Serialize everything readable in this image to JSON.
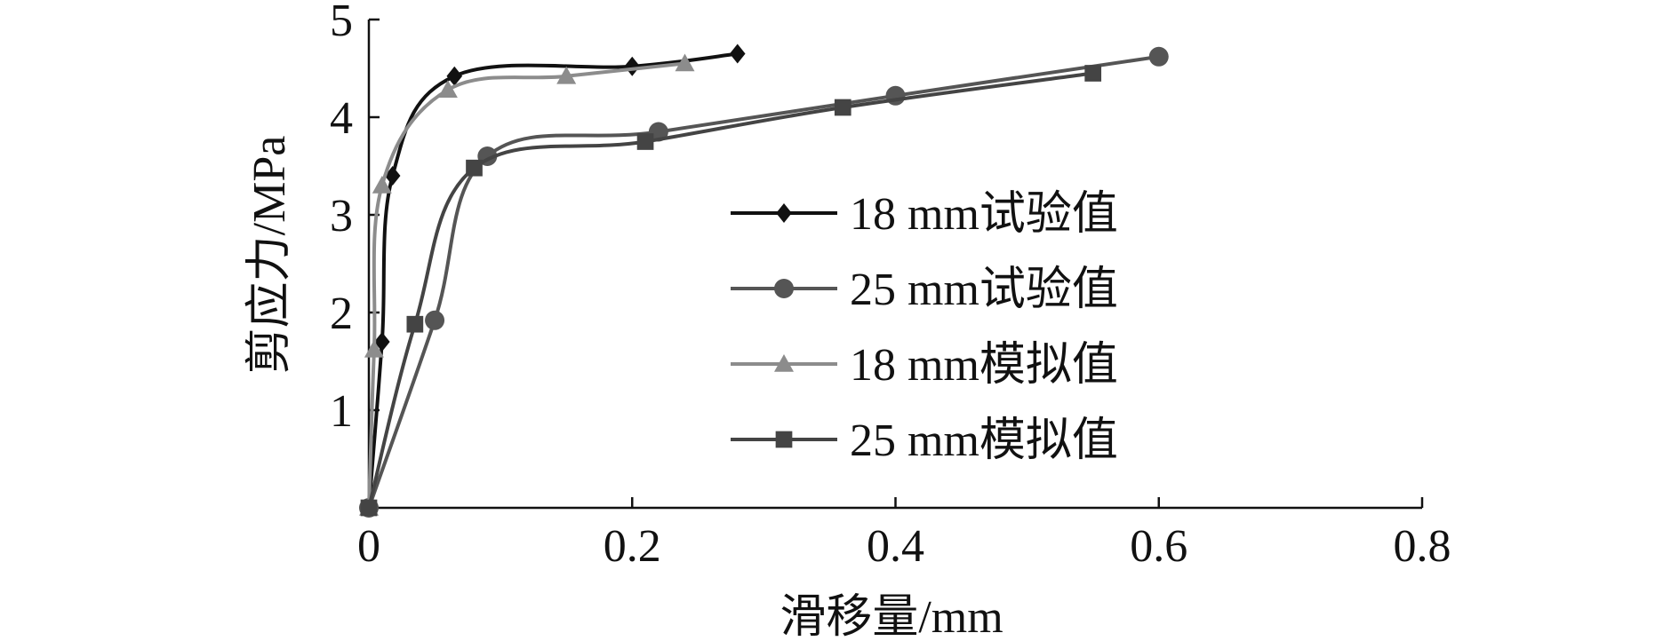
{
  "chart_data": {
    "type": "line",
    "xlabel": "滑移量/mm",
    "ylabel": "剪应力/MPa",
    "xlim": [
      0,
      0.8
    ],
    "ylim": [
      0,
      5
    ],
    "x_ticks": [
      "0",
      "0.2",
      "0.4",
      "0.6",
      "0.8"
    ],
    "y_ticks": [
      "1",
      "2",
      "3",
      "4",
      "5"
    ],
    "x_tick_values": [
      0,
      0.2,
      0.4,
      0.6,
      0.8
    ],
    "y_tick_values": [
      1,
      2,
      3,
      4,
      5
    ],
    "grid": false,
    "legend_position": "center-right",
    "series": [
      {
        "name": "18 mm试验值",
        "marker": "diamond",
        "color": "#111111",
        "x": [
          0,
          0.01,
          0.018,
          0.065,
          0.2,
          0.28
        ],
        "y": [
          0,
          1.7,
          3.4,
          4.42,
          4.52,
          4.65
        ]
      },
      {
        "name": "25 mm试验值",
        "marker": "circle",
        "color": "#555555",
        "x": [
          0,
          0.05,
          0.09,
          0.22,
          0.4,
          0.6
        ],
        "y": [
          0,
          1.92,
          3.6,
          3.85,
          4.22,
          4.62
        ]
      },
      {
        "name": "18 mm模拟值",
        "marker": "triangle",
        "color": "#8c8c8c",
        "x": [
          0,
          0.004,
          0.01,
          0.06,
          0.15,
          0.24
        ],
        "y": [
          0,
          1.62,
          3.3,
          4.28,
          4.42,
          4.55
        ]
      },
      {
        "name": "25 mm模拟值",
        "marker": "square",
        "color": "#444444",
        "x": [
          0,
          0.035,
          0.08,
          0.21,
          0.36,
          0.55
        ],
        "y": [
          0,
          1.88,
          3.48,
          3.75,
          4.1,
          4.45
        ]
      }
    ]
  }
}
